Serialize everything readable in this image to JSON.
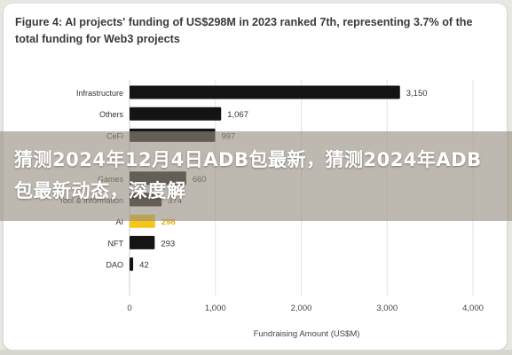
{
  "figure_title": "Figure 4: AI projects' funding of US$298M in 2023 ranked 7th, representing 3.7% of the total funding for Web3 projects",
  "overlay_title": "猜测2024年12月4日ADB包最新，猜测2024年ADB包最新动态，深度解",
  "chart_data": {
    "type": "bar",
    "orientation": "horizontal",
    "categories": [
      "Infrastructure",
      "Others",
      "CeFi",
      "",
      "Games",
      "Tool & Information",
      "AI",
      "NFT",
      "DAO"
    ],
    "values": [
      3150,
      1067,
      997,
      null,
      660,
      374,
      298,
      293,
      42
    ],
    "value_labels": [
      "3,150",
      "1,067",
      "997",
      "",
      "660",
      "374",
      "298",
      "293",
      "42"
    ],
    "highlight": "AI",
    "colors": {
      "bar": "#141414",
      "highlight": "#f5c518",
      "highlight_label": "#e0b000",
      "label": "#333333"
    },
    "xlabel": "Fundraising Amount (US$M)",
    "xlim": [
      0,
      4000
    ],
    "xticks": [
      0,
      1000,
      2000,
      3000,
      4000
    ],
    "xtick_labels": [
      "0",
      "1,000",
      "2,000",
      "3,000",
      "4,000"
    ],
    "grid": "vertical"
  }
}
